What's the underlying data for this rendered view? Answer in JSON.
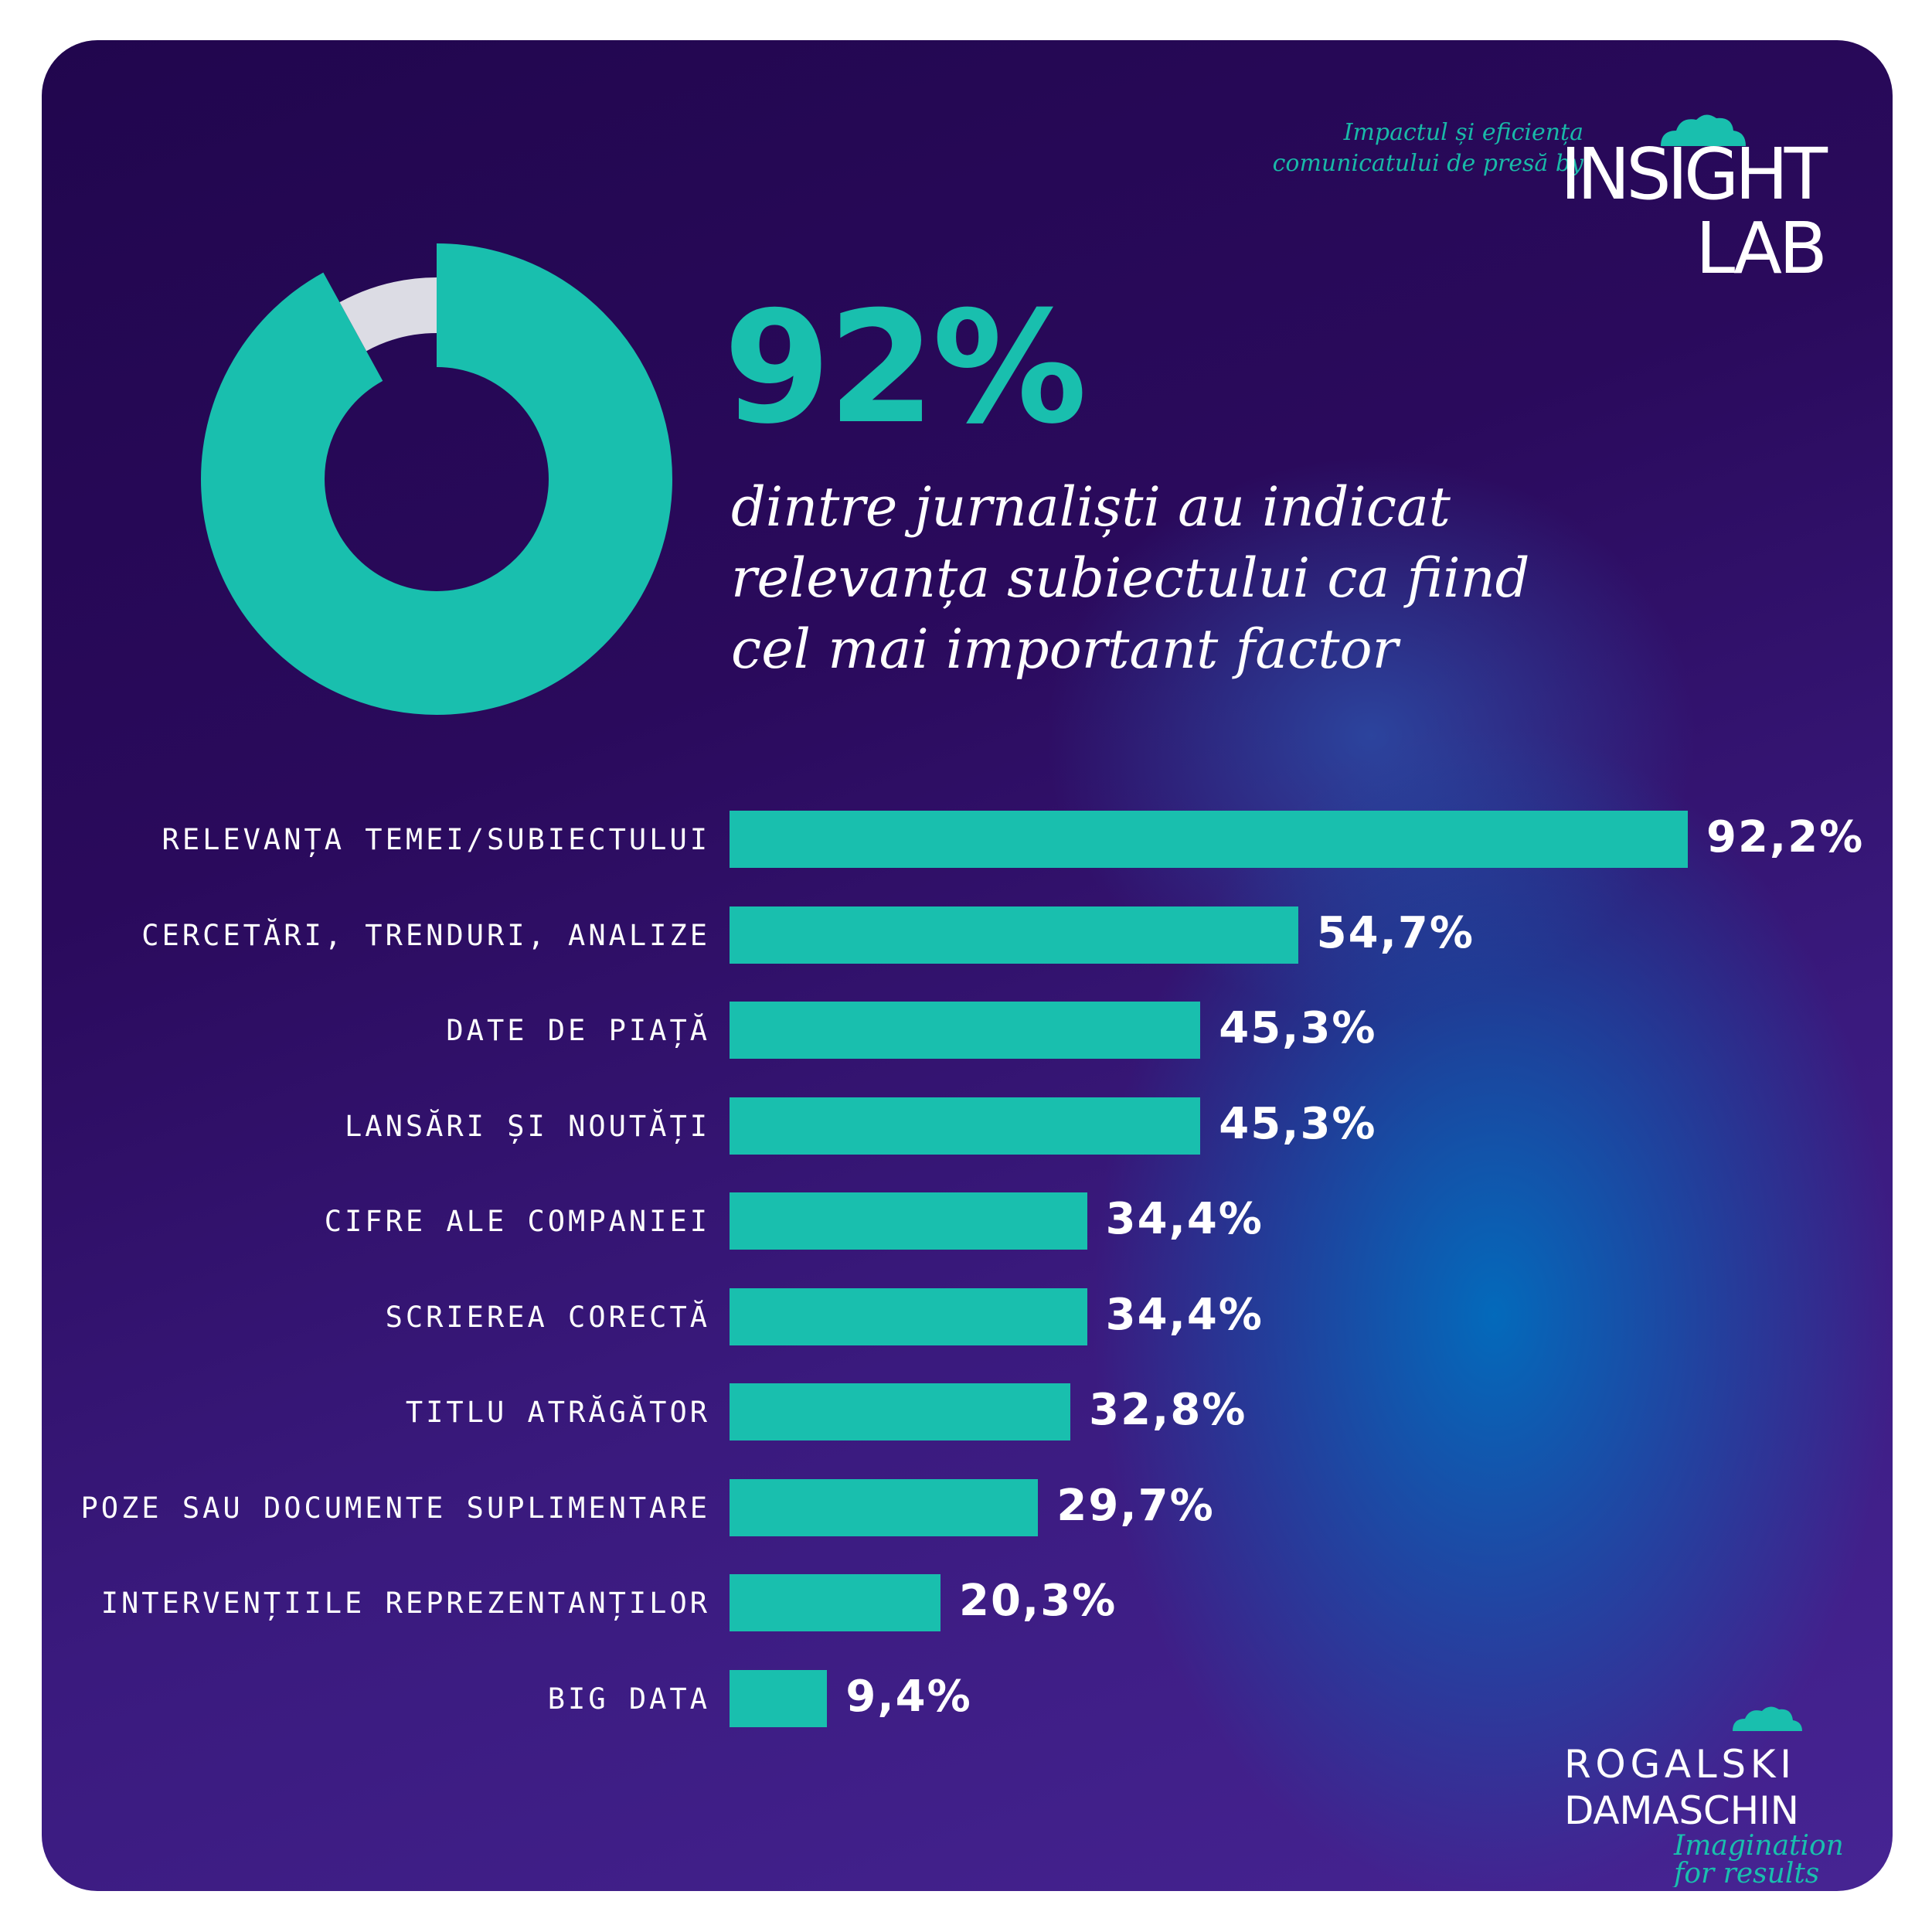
{
  "header": {
    "tagline_line1": "Impactul și eficiența",
    "tagline_line2": "comunicatului de presă by",
    "brand_line1": "INSIGHT",
    "brand_line2": "LAB"
  },
  "headline": {
    "percent": "92%",
    "subtitle_line1": "dintre jurnaliști au indicat",
    "subtitle_line2": "relevanța subiectului ca fiind",
    "subtitle_line3": "cel mai important factor"
  },
  "colors": {
    "accent": "#19bfae",
    "donut_remainder": "#dcdce4",
    "background_dark": "#21064e",
    "background_glow": "#006ebe",
    "text": "#ffffff"
  },
  "chart_data": [
    {
      "type": "pie",
      "values": [
        92,
        8
      ],
      "colors": [
        "#19bfae",
        "#dcdce4"
      ]
    },
    {
      "type": "bar",
      "orientation": "horizontal",
      "categories": [
        "RELEVANȚA TEMEI/SUBIECTULUI",
        "CERCETĂRI, TRENDURI, ANALIZE",
        "DATE DE PIAȚĂ",
        "LANSĂRI ȘI NOUTĂȚI",
        "CIFRE ALE COMPANIEI",
        "SCRIEREA CORECTĂ",
        "TITLU ATRĂGĂTOR",
        "POZE SAU DOCUMENTE SUPLIMENTARE",
        "INTERVENȚIILE REPREZENTANȚILOR",
        "BIG DATA"
      ],
      "values": [
        92.2,
        54.7,
        45.3,
        45.3,
        34.4,
        34.4,
        32.8,
        29.7,
        20.3,
        9.4
      ],
      "value_labels": [
        "92,2%",
        "54,7%",
        "45,3%",
        "45,3%",
        "34,4%",
        "34,4%",
        "32,8%",
        "29,7%",
        "20,3%",
        "9,4%"
      ],
      "xlim": [
        0,
        92.2
      ]
    }
  ],
  "footer": {
    "brand_line1": "ROGALSKI",
    "brand_line2": "DAMASCHIN",
    "tagline_line1": "Imagination",
    "tagline_line2": "for results"
  }
}
